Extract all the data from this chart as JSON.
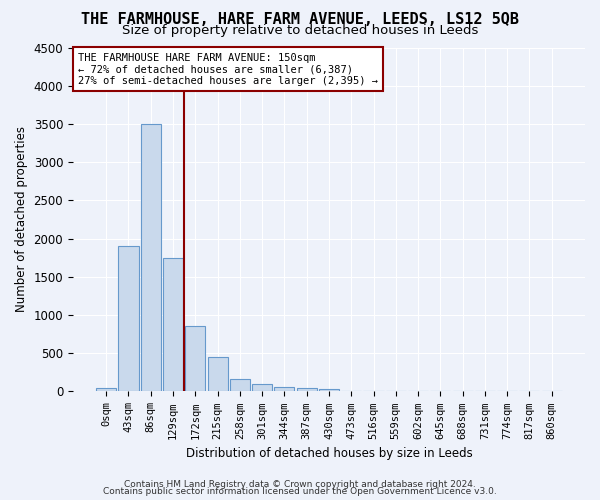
{
  "title": "THE FARMHOUSE, HARE FARM AVENUE, LEEDS, LS12 5QB",
  "subtitle": "Size of property relative to detached houses in Leeds",
  "xlabel": "Distribution of detached houses by size in Leeds",
  "ylabel": "Number of detached properties",
  "bar_values": [
    50,
    1900,
    3500,
    1750,
    850,
    450,
    160,
    95,
    55,
    40,
    30,
    0,
    0,
    0,
    0,
    0,
    0,
    0,
    0,
    0,
    0
  ],
  "bar_labels": [
    "0sqm",
    "43sqm",
    "86sqm",
    "129sqm",
    "172sqm",
    "215sqm",
    "258sqm",
    "301sqm",
    "344sqm",
    "387sqm",
    "430sqm",
    "473sqm",
    "516sqm",
    "559sqm",
    "602sqm",
    "645sqm",
    "688sqm",
    "731sqm",
    "774sqm",
    "817sqm",
    "860sqm"
  ],
  "bar_color": "#c9d9ec",
  "bar_edge_color": "#6699cc",
  "ylim": [
    0,
    4500
  ],
  "yticks": [
    0,
    500,
    1000,
    1500,
    2000,
    2500,
    3000,
    3500,
    4000,
    4500
  ],
  "vline_color": "#8b0000",
  "annotation_text": "THE FARMHOUSE HARE FARM AVENUE: 150sqm\n← 72% of detached houses are smaller (6,387)\n27% of semi-detached houses are larger (2,395) →",
  "annotation_box_color": "#8b0000",
  "footer_line1": "Contains HM Land Registry data © Crown copyright and database right 2024.",
  "footer_line2": "Contains public sector information licensed under the Open Government Licence v3.0.",
  "background_color": "#eef2fa",
  "grid_color": "#ffffff",
  "title_fontsize": 11,
  "subtitle_fontsize": 9.5
}
